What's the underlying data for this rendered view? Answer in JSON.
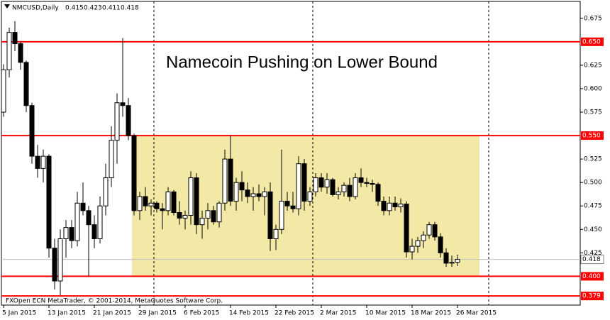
{
  "chart_data": {
    "type": "candlestick",
    "symbol": "NMCUSD,Daily",
    "annotation": "Namecoin Pushing on Lower Bound",
    "footer": "FXOpen ECN MetaTrader, © 2001-2014, MetaQuotes Software Corp.",
    "categories": [
      "5 Jan 2015",
      null,
      null,
      null,
      null,
      null,
      null,
      null,
      "13 Jan 2015",
      null,
      null,
      null,
      null,
      null,
      null,
      null,
      "21 Jan 2015",
      null,
      null,
      null,
      null,
      null,
      null,
      null,
      "29 Jan 2015",
      null,
      null,
      null,
      null,
      null,
      null,
      null,
      "6 Feb 2015",
      null,
      null,
      null,
      null,
      null,
      null,
      null,
      "14 Feb 2015",
      null,
      null,
      null,
      null,
      null,
      null,
      null,
      "22 Feb 2015",
      null,
      null,
      null,
      null,
      null,
      null,
      null,
      "2 Mar 2015",
      null,
      null,
      null,
      null,
      null,
      null,
      null,
      "10 Mar 2015",
      null,
      null,
      null,
      null,
      null,
      null,
      null,
      "18 Mar 2015",
      null,
      null,
      null,
      null,
      null,
      null,
      null,
      "26 Mar 2015"
    ],
    "open": [
      0.575,
      0.62,
      0.66,
      0.648,
      0.628,
      0.582,
      0.528,
      0.515,
      0.528,
      0.43,
      0.395,
      0.44,
      0.452,
      0.438,
      0.478,
      0.47,
      0.455,
      0.44,
      0.475,
      0.505,
      0.545,
      0.585,
      0.582,
      0.55,
      0.47,
      0.485,
      0.475,
      0.478,
      0.472,
      0.47,
      0.49,
      0.468,
      0.462,
      0.465,
      0.505,
      0.455,
      0.462,
      0.47,
      0.458,
      0.478,
      0.525,
      0.48,
      0.5,
      0.492,
      0.485,
      0.488,
      0.485,
      0.49,
      0.44,
      0.45,
      0.48,
      0.475,
      0.472,
      0.52,
      0.48,
      0.49,
      0.505,
      0.495,
      0.503,
      0.487,
      0.49,
      0.497,
      0.485,
      0.505,
      0.5,
      0.499,
      0.498,
      0.48,
      0.47,
      0.478,
      0.474,
      0.477,
      0.426,
      0.432,
      0.438,
      0.444,
      0.455,
      0.442,
      0.425,
      0.414,
      0.415
    ],
    "high": [
      0.626,
      0.665,
      0.672,
      0.65,
      0.63,
      0.585,
      0.54,
      0.535,
      0.53,
      0.44,
      0.45,
      0.46,
      0.46,
      0.49,
      0.5,
      0.475,
      0.465,
      0.485,
      0.52,
      0.56,
      0.595,
      0.654,
      0.59,
      0.552,
      0.49,
      0.495,
      0.482,
      0.48,
      0.478,
      0.495,
      0.492,
      0.48,
      0.47,
      0.512,
      0.51,
      0.47,
      0.478,
      0.475,
      0.48,
      0.535,
      0.55,
      0.505,
      0.512,
      0.5,
      0.495,
      0.498,
      0.495,
      0.5,
      0.455,
      0.535,
      0.49,
      0.49,
      0.528,
      0.525,
      0.495,
      0.51,
      0.51,
      0.51,
      0.505,
      0.495,
      0.5,
      0.505,
      0.51,
      0.515,
      0.505,
      0.503,
      0.5,
      0.485,
      0.485,
      0.485,
      0.483,
      0.48,
      0.44,
      0.442,
      0.448,
      0.458,
      0.458,
      0.446,
      0.43,
      0.422,
      0.423
    ],
    "low": [
      0.57,
      0.612,
      0.64,
      0.62,
      0.575,
      0.52,
      0.505,
      0.5,
      0.42,
      0.386,
      0.38,
      0.42,
      0.43,
      0.432,
      0.465,
      0.4,
      0.43,
      0.435,
      0.465,
      0.495,
      0.52,
      0.57,
      0.545,
      0.465,
      0.46,
      0.47,
      0.465,
      0.468,
      0.45,
      0.465,
      0.465,
      0.455,
      0.45,
      0.455,
      0.445,
      0.44,
      0.45,
      0.455,
      0.452,
      0.47,
      0.475,
      0.47,
      0.48,
      0.478,
      0.47,
      0.48,
      0.465,
      0.427,
      0.428,
      0.445,
      0.47,
      0.468,
      0.465,
      0.47,
      0.475,
      0.485,
      0.49,
      0.488,
      0.485,
      0.482,
      0.485,
      0.48,
      0.482,
      0.495,
      0.495,
      0.49,
      0.475,
      0.465,
      0.465,
      0.47,
      0.468,
      0.42,
      0.418,
      0.425,
      0.43,
      0.44,
      0.438,
      0.42,
      0.41,
      0.41,
      0.411
    ],
    "close": [
      0.62,
      0.66,
      0.648,
      0.628,
      0.582,
      0.528,
      0.515,
      0.528,
      0.43,
      0.395,
      0.44,
      0.452,
      0.438,
      0.478,
      0.47,
      0.455,
      0.44,
      0.475,
      0.505,
      0.545,
      0.585,
      0.582,
      0.55,
      0.47,
      0.485,
      0.475,
      0.478,
      0.472,
      0.47,
      0.49,
      0.468,
      0.462,
      0.465,
      0.505,
      0.455,
      0.462,
      0.47,
      0.458,
      0.478,
      0.525,
      0.48,
      0.5,
      0.492,
      0.485,
      0.488,
      0.485,
      0.49,
      0.44,
      0.45,
      0.48,
      0.475,
      0.472,
      0.52,
      0.48,
      0.49,
      0.505,
      0.495,
      0.503,
      0.487,
      0.49,
      0.497,
      0.485,
      0.505,
      0.5,
      0.499,
      0.498,
      0.48,
      0.47,
      0.478,
      0.474,
      0.477,
      0.426,
      0.432,
      0.438,
      0.444,
      0.455,
      0.442,
      0.425,
      0.414,
      0.415,
      0.418
    ],
    "ylim": [
      0.3708,
      0.693
    ],
    "yticks": [
      0.675,
      0.625,
      {
        "value": 0.6,
        "label": "0.600"
      },
      0.575,
      0.525,
      {
        "value": 0.5,
        "label": "0.500"
      },
      0.475,
      {
        "value": 0.45,
        "label": "0.450"
      },
      0.425
    ],
    "hlines": [
      {
        "value": 0.65,
        "label": "0.650"
      },
      {
        "value": 0.55,
        "label": "0.550"
      },
      {
        "value": 0.4,
        "label": "0.400"
      },
      0.379
    ],
    "hline_color": "#ff0000",
    "zone_color": "#f3e9a6",
    "bull_color": "#ffffff",
    "bear_color": "#000000"
  }
}
